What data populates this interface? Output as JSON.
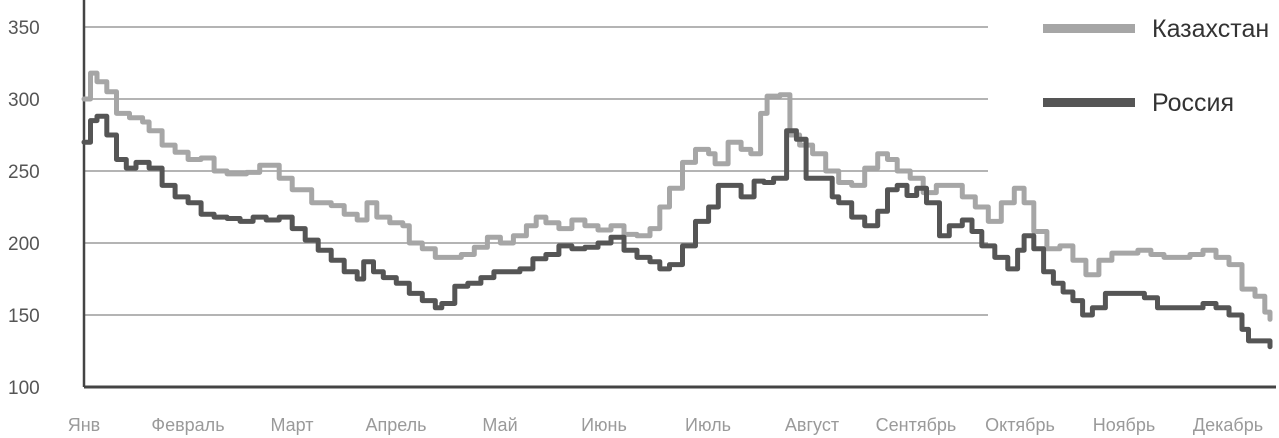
{
  "chart_data": {
    "type": "line",
    "title": "",
    "xlabel": "",
    "ylabel": "",
    "ylim": [
      100,
      350
    ],
    "yticks": [
      100,
      150,
      200,
      250,
      300,
      350
    ],
    "months": [
      "Янв",
      "Февраль",
      "Март",
      "Апрель",
      "Май",
      "Июнь",
      "Июль",
      "Август",
      "Сентябрь",
      "Октябрь",
      "Ноябрь",
      "Декабрь"
    ],
    "grid": "horizontal",
    "legend_position": "top-right",
    "series": [
      {
        "name": "Казахстан",
        "color": "#a6a6a6",
        "points": [
          [
            0.0,
            300
          ],
          [
            0.1,
            318
          ],
          [
            0.2,
            312
          ],
          [
            0.35,
            305
          ],
          [
            0.5,
            290
          ],
          [
            0.7,
            287
          ],
          [
            0.9,
            284
          ],
          [
            1.0,
            278
          ],
          [
            1.2,
            268
          ],
          [
            1.4,
            263
          ],
          [
            1.6,
            258
          ],
          [
            1.8,
            259
          ],
          [
            2.0,
            250
          ],
          [
            2.2,
            248
          ],
          [
            2.5,
            249
          ],
          [
            2.7,
            254
          ],
          [
            2.9,
            254
          ],
          [
            3.0,
            245
          ],
          [
            3.2,
            237
          ],
          [
            3.5,
            228
          ],
          [
            3.8,
            226
          ],
          [
            4.0,
            220
          ],
          [
            4.2,
            216
          ],
          [
            4.35,
            228
          ],
          [
            4.5,
            218
          ],
          [
            4.7,
            214
          ],
          [
            4.9,
            212
          ],
          [
            5.0,
            200
          ],
          [
            5.2,
            196
          ],
          [
            5.4,
            190
          ],
          [
            5.6,
            190
          ],
          [
            5.8,
            192
          ],
          [
            6.0,
            197
          ],
          [
            6.2,
            204
          ],
          [
            6.4,
            200
          ],
          [
            6.6,
            205
          ],
          [
            6.8,
            212
          ],
          [
            6.95,
            218
          ],
          [
            7.1,
            214
          ],
          [
            7.3,
            210
          ],
          [
            7.5,
            216
          ],
          [
            7.7,
            212
          ],
          [
            7.9,
            209
          ],
          [
            8.1,
            212
          ],
          [
            8.3,
            206
          ],
          [
            8.5,
            205
          ],
          [
            8.7,
            210
          ],
          [
            8.85,
            225
          ],
          [
            9.0,
            238
          ],
          [
            9.2,
            256
          ],
          [
            9.4,
            265
          ],
          [
            9.6,
            262
          ],
          [
            9.7,
            255
          ],
          [
            9.9,
            270
          ],
          [
            10.1,
            265
          ],
          [
            10.25,
            262
          ],
          [
            10.4,
            290
          ],
          [
            10.5,
            302
          ],
          [
            10.7,
            303
          ],
          [
            10.85,
            275
          ],
          [
            11.0,
            268
          ],
          [
            11.2,
            262
          ],
          [
            11.4,
            250
          ],
          [
            11.6,
            242
          ],
          [
            11.8,
            240
          ],
          [
            12.0,
            252
          ],
          [
            12.2,
            262
          ],
          [
            12.35,
            258
          ],
          [
            12.5,
            250
          ],
          [
            12.7,
            245
          ],
          [
            12.9,
            235
          ],
          [
            13.1,
            240
          ],
          [
            13.3,
            240
          ],
          [
            13.5,
            232
          ],
          [
            13.7,
            225
          ],
          [
            13.9,
            215
          ],
          [
            14.1,
            228
          ],
          [
            14.3,
            238
          ],
          [
            14.45,
            228
          ],
          [
            14.6,
            208
          ],
          [
            14.8,
            196
          ],
          [
            15.0,
            198
          ],
          [
            15.2,
            188
          ],
          [
            15.4,
            178
          ],
          [
            15.6,
            188
          ],
          [
            15.8,
            193
          ],
          [
            16.0,
            193
          ],
          [
            16.2,
            195
          ],
          [
            16.4,
            192
          ],
          [
            16.6,
            190
          ],
          [
            16.8,
            190
          ],
          [
            17.0,
            192
          ],
          [
            17.2,
            195
          ],
          [
            17.4,
            190
          ],
          [
            17.6,
            185
          ],
          [
            17.8,
            168
          ],
          [
            18.0,
            163
          ],
          [
            18.15,
            152
          ],
          [
            18.23,
            147
          ]
        ]
      },
      {
        "name": "Россия",
        "color": "#555555",
        "points": [
          [
            0.0,
            270
          ],
          [
            0.1,
            285
          ],
          [
            0.2,
            288
          ],
          [
            0.35,
            275
          ],
          [
            0.5,
            258
          ],
          [
            0.65,
            252
          ],
          [
            0.8,
            256
          ],
          [
            1.0,
            252
          ],
          [
            1.2,
            240
          ],
          [
            1.4,
            232
          ],
          [
            1.6,
            228
          ],
          [
            1.8,
            220
          ],
          [
            2.0,
            218
          ],
          [
            2.2,
            217
          ],
          [
            2.4,
            215
          ],
          [
            2.6,
            218
          ],
          [
            2.8,
            216
          ],
          [
            3.0,
            218
          ],
          [
            3.2,
            210
          ],
          [
            3.4,
            202
          ],
          [
            3.6,
            195
          ],
          [
            3.8,
            188
          ],
          [
            4.0,
            180
          ],
          [
            4.2,
            175
          ],
          [
            4.3,
            187
          ],
          [
            4.45,
            180
          ],
          [
            4.6,
            176
          ],
          [
            4.8,
            172
          ],
          [
            5.0,
            165
          ],
          [
            5.2,
            160
          ],
          [
            5.4,
            155
          ],
          [
            5.5,
            158
          ],
          [
            5.7,
            170
          ],
          [
            5.9,
            172
          ],
          [
            6.1,
            176
          ],
          [
            6.3,
            180
          ],
          [
            6.5,
            180
          ],
          [
            6.7,
            182
          ],
          [
            6.9,
            189
          ],
          [
            7.1,
            192
          ],
          [
            7.3,
            198
          ],
          [
            7.5,
            196
          ],
          [
            7.7,
            197
          ],
          [
            7.9,
            200
          ],
          [
            8.1,
            204
          ],
          [
            8.3,
            195
          ],
          [
            8.5,
            190
          ],
          [
            8.7,
            187
          ],
          [
            8.85,
            182
          ],
          [
            9.0,
            185
          ],
          [
            9.2,
            198
          ],
          [
            9.4,
            215
          ],
          [
            9.6,
            225
          ],
          [
            9.75,
            240
          ],
          [
            9.9,
            240
          ],
          [
            10.1,
            232
          ],
          [
            10.3,
            243
          ],
          [
            10.45,
            242
          ],
          [
            10.6,
            245
          ],
          [
            10.8,
            278
          ],
          [
            10.95,
            272
          ],
          [
            11.1,
            245
          ],
          [
            11.3,
            245
          ],
          [
            11.5,
            232
          ],
          [
            11.6,
            228
          ],
          [
            11.8,
            218
          ],
          [
            12.0,
            212
          ],
          [
            12.2,
            222
          ],
          [
            12.35,
            237
          ],
          [
            12.5,
            240
          ],
          [
            12.65,
            233
          ],
          [
            12.8,
            238
          ],
          [
            12.95,
            228
          ],
          [
            13.15,
            205
          ],
          [
            13.3,
            212
          ],
          [
            13.5,
            216
          ],
          [
            13.65,
            208
          ],
          [
            13.8,
            198
          ],
          [
            14.0,
            190
          ],
          [
            14.2,
            182
          ],
          [
            14.35,
            195
          ],
          [
            14.45,
            205
          ],
          [
            14.6,
            196
          ],
          [
            14.75,
            180
          ],
          [
            14.9,
            172
          ],
          [
            15.05,
            166
          ],
          [
            15.2,
            160
          ],
          [
            15.35,
            150
          ],
          [
            15.5,
            155
          ],
          [
            15.7,
            165
          ],
          [
            15.9,
            165
          ],
          [
            16.1,
            165
          ],
          [
            16.3,
            162
          ],
          [
            16.5,
            155
          ],
          [
            16.7,
            155
          ],
          [
            16.9,
            155
          ],
          [
            17.1,
            155
          ],
          [
            17.2,
            158
          ],
          [
            17.4,
            155
          ],
          [
            17.6,
            150
          ],
          [
            17.8,
            140
          ],
          [
            17.9,
            132
          ],
          [
            18.05,
            132
          ],
          [
            18.23,
            128
          ]
        ]
      }
    ]
  }
}
